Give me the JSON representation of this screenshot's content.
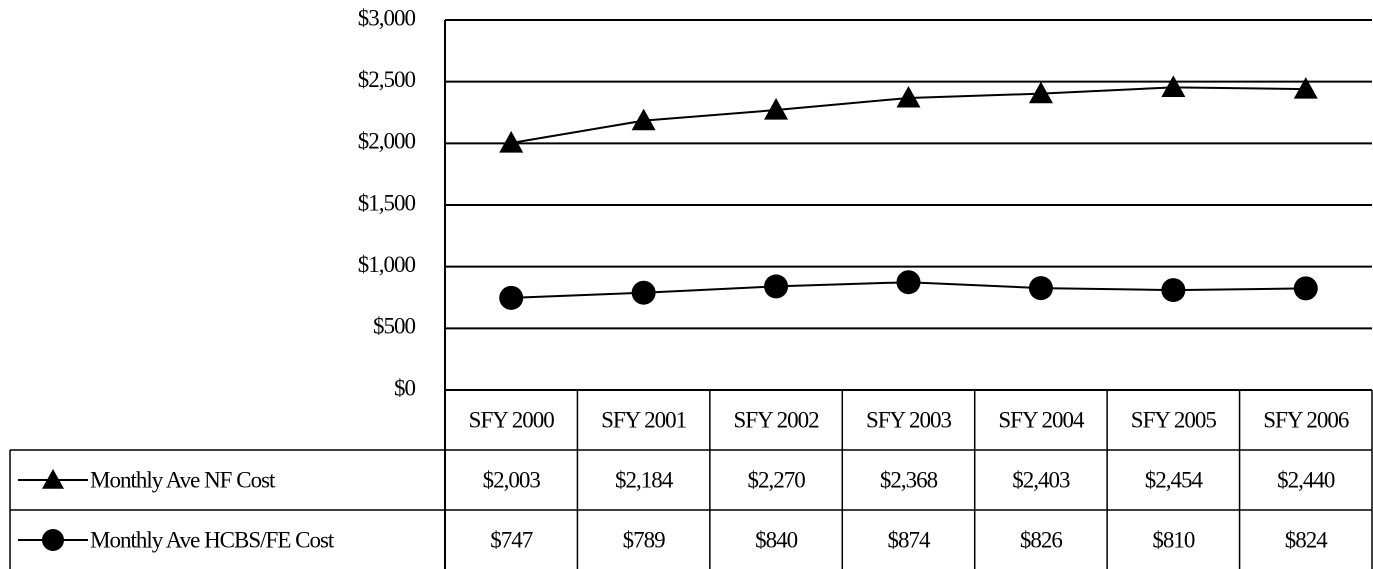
{
  "chart_data": {
    "type": "line",
    "categories": [
      "SFY 2000",
      "SFY 2001",
      "SFY 2002",
      "SFY 2003",
      "SFY 2004",
      "SFY 2005",
      "SFY 2006"
    ],
    "series": [
      {
        "name": "Monthly Ave NF Cost",
        "color": "#000000",
        "marker": "triangle",
        "values": [
          2003,
          2184,
          2270,
          2368,
          2403,
          2454,
          2440
        ],
        "value_labels": [
          "$2,003",
          "$2,184",
          "$2,270",
          "$2,368",
          "$2,403",
          "$2,454",
          "$2,440"
        ]
      },
      {
        "name": "Monthly Ave HCBS/FE Cost",
        "color": "#000000",
        "marker": "circle",
        "values": [
          747,
          789,
          840,
          874,
          826,
          810,
          824
        ],
        "value_labels": [
          "$747",
          "$789",
          "$840",
          "$874",
          "$826",
          "$810",
          "$824"
        ]
      }
    ],
    "ylim": [
      0,
      3000
    ],
    "yticks": [
      {
        "value": 0,
        "label": "$0"
      },
      {
        "value": 500,
        "label": "$500"
      },
      {
        "value": 1000,
        "label": "$1,000"
      },
      {
        "value": 1500,
        "label": "$1,500"
      },
      {
        "value": 2000,
        "label": "$2,000"
      },
      {
        "value": 2500,
        "label": "$2,500"
      },
      {
        "value": 3000,
        "label": "$3,000"
      }
    ],
    "grid": true
  }
}
